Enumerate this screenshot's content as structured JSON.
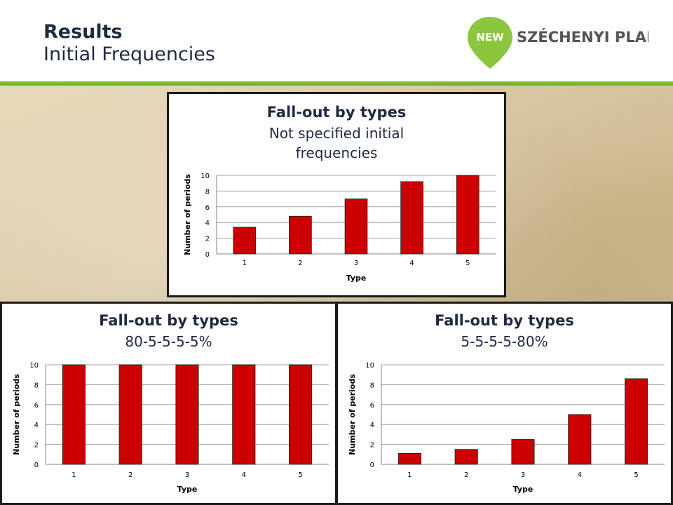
{
  "header": {
    "title": "Results",
    "subtitle": "Initial Frequencies",
    "logo_badge": "NEW",
    "logo_text": "SZÉCHENYI PLAN"
  },
  "colors": {
    "bar": "#cc0000",
    "accent_green": "#8cc63f",
    "title_text": "#1f2a44"
  },
  "chart_data": [
    {
      "type": "bar",
      "title": "Fall-out by types",
      "subtitle": "Not specified initial frequencies",
      "subtitle_lines": [
        "Not specified initial",
        "frequencies"
      ],
      "xlabel": "Type",
      "ylabel": "Number of periods",
      "categories": [
        "1",
        "2",
        "3",
        "4",
        "5"
      ],
      "values": [
        3.4,
        4.8,
        7.0,
        9.2,
        10
      ],
      "ylim": [
        0,
        10
      ],
      "yticks": [
        0,
        2,
        4,
        6,
        8,
        10
      ],
      "grid": true,
      "legend": "none"
    },
    {
      "type": "bar",
      "title": "Fall-out by types",
      "subtitle": "80-5-5-5-5%",
      "subtitle_lines": [
        "80-5-5-5-5%"
      ],
      "xlabel": "Type",
      "ylabel": "Number of periods",
      "categories": [
        "1",
        "2",
        "3",
        "4",
        "5"
      ],
      "values": [
        10,
        10,
        10,
        10,
        10
      ],
      "ylim": [
        0,
        10
      ],
      "yticks": [
        0,
        2,
        4,
        6,
        8,
        10
      ],
      "grid": true,
      "legend": "none"
    },
    {
      "type": "bar",
      "title": "Fall-out by types",
      "subtitle": "5-5-5-5-80%",
      "subtitle_lines": [
        "5-5-5-5-80%"
      ],
      "xlabel": "Type",
      "ylabel": "Number of periods",
      "categories": [
        "1",
        "2",
        "3",
        "4",
        "5"
      ],
      "values": [
        1.1,
        1.5,
        2.5,
        5.0,
        8.6
      ],
      "ylim": [
        0,
        10
      ],
      "yticks": [
        0,
        2,
        4,
        6,
        8,
        10
      ],
      "grid": true,
      "legend": "none"
    }
  ]
}
